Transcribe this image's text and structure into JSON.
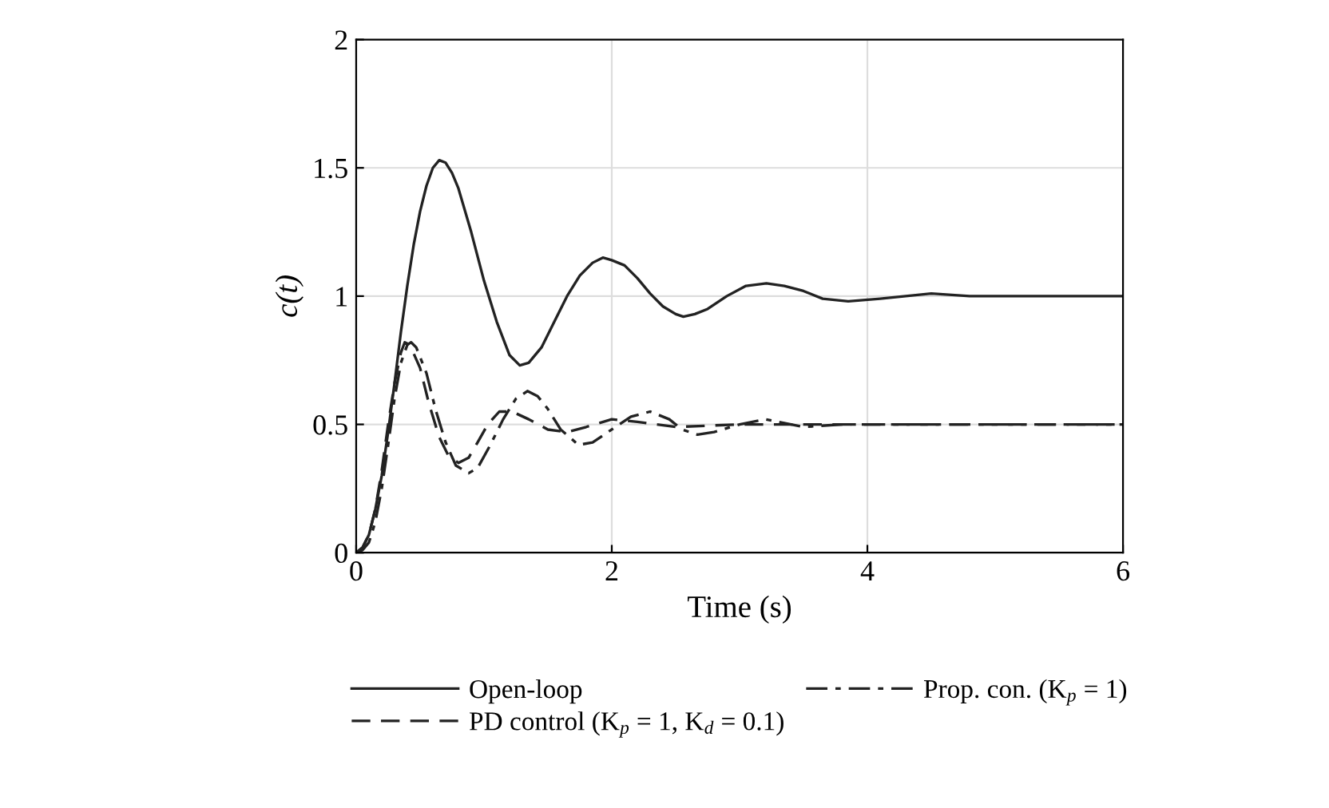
{
  "chart_data": {
    "type": "line",
    "xlabel": "Time (s)",
    "ylabel": "c(t)",
    "xlim": [
      0,
      6
    ],
    "xticks": [
      0,
      2,
      4,
      6
    ],
    "ylim": [
      0,
      2
    ],
    "yticks": [
      0,
      0.5,
      1,
      1.5,
      2
    ],
    "grid": true,
    "legend": "bottom",
    "marker": "none",
    "series": [
      {
        "name": "Open-loop",
        "color": "#222222",
        "line_style": "solid",
        "x": [
          0,
          0.05,
          0.1,
          0.15,
          0.2,
          0.25,
          0.3,
          0.35,
          0.4,
          0.45,
          0.5,
          0.55,
          0.6,
          0.65,
          0.7,
          0.75,
          0.8,
          0.9,
          1.0,
          1.1,
          1.2,
          1.28,
          1.35,
          1.45,
          1.55,
          1.65,
          1.75,
          1.85,
          1.93,
          2.0,
          2.1,
          2.2,
          2.3,
          2.4,
          2.5,
          2.56,
          2.65,
          2.75,
          2.9,
          3.05,
          3.21,
          3.35,
          3.5,
          3.65,
          3.85,
          4.1,
          4.5,
          4.8,
          5.2,
          6
        ],
        "values": [
          0,
          0.02,
          0.07,
          0.17,
          0.3,
          0.47,
          0.66,
          0.86,
          1.04,
          1.2,
          1.33,
          1.43,
          1.5,
          1.53,
          1.52,
          1.48,
          1.42,
          1.25,
          1.06,
          0.9,
          0.77,
          0.73,
          0.74,
          0.8,
          0.9,
          1.0,
          1.08,
          1.13,
          1.15,
          1.14,
          1.12,
          1.07,
          1.01,
          0.96,
          0.93,
          0.92,
          0.93,
          0.95,
          1.0,
          1.04,
          1.05,
          1.04,
          1.02,
          0.99,
          0.98,
          0.99,
          1.01,
          1.0,
          1.0,
          1.0
        ]
      },
      {
        "name": "Prop. con. (K$_{p}$ = 1)",
        "color": "#222222",
        "line_style": "dashdot",
        "x": [
          0,
          0.05,
          0.1,
          0.15,
          0.2,
          0.25,
          0.3,
          0.35,
          0.4,
          0.43,
          0.47,
          0.55,
          0.62,
          0.7,
          0.78,
          0.88,
          0.95,
          1.05,
          1.15,
          1.25,
          1.34,
          1.42,
          1.5,
          1.6,
          1.74,
          1.85,
          2.0,
          2.15,
          2.3,
          2.45,
          2.55,
          2.67,
          2.8,
          3.0,
          3.2,
          3.5,
          3.8,
          4,
          6
        ],
        "values": [
          0,
          0.01,
          0.04,
          0.12,
          0.25,
          0.42,
          0.6,
          0.74,
          0.81,
          0.82,
          0.8,
          0.7,
          0.56,
          0.43,
          0.34,
          0.31,
          0.33,
          0.42,
          0.52,
          0.6,
          0.63,
          0.61,
          0.56,
          0.48,
          0.42,
          0.43,
          0.48,
          0.53,
          0.55,
          0.52,
          0.48,
          0.46,
          0.47,
          0.5,
          0.52,
          0.49,
          0.5,
          0.5,
          0.5
        ]
      },
      {
        "name": "PD control (K$_{p}$ = 1, K$_{d}$ = 0.1)",
        "color": "#222222",
        "line_style": "dashed",
        "x": [
          0,
          0.05,
          0.1,
          0.15,
          0.2,
          0.25,
          0.3,
          0.35,
          0.38,
          0.42,
          0.5,
          0.57,
          0.65,
          0.72,
          0.8,
          0.88,
          0.95,
          1.03,
          1.12,
          1.22,
          1.35,
          1.5,
          1.65,
          1.8,
          2.0,
          2.2,
          2.5,
          3,
          4,
          6
        ],
        "values": [
          0,
          0.02,
          0.07,
          0.17,
          0.32,
          0.5,
          0.66,
          0.78,
          0.82,
          0.81,
          0.72,
          0.58,
          0.45,
          0.38,
          0.35,
          0.37,
          0.43,
          0.5,
          0.55,
          0.55,
          0.52,
          0.48,
          0.47,
          0.49,
          0.52,
          0.51,
          0.49,
          0.5,
          0.5,
          0.5
        ]
      }
    ]
  }
}
